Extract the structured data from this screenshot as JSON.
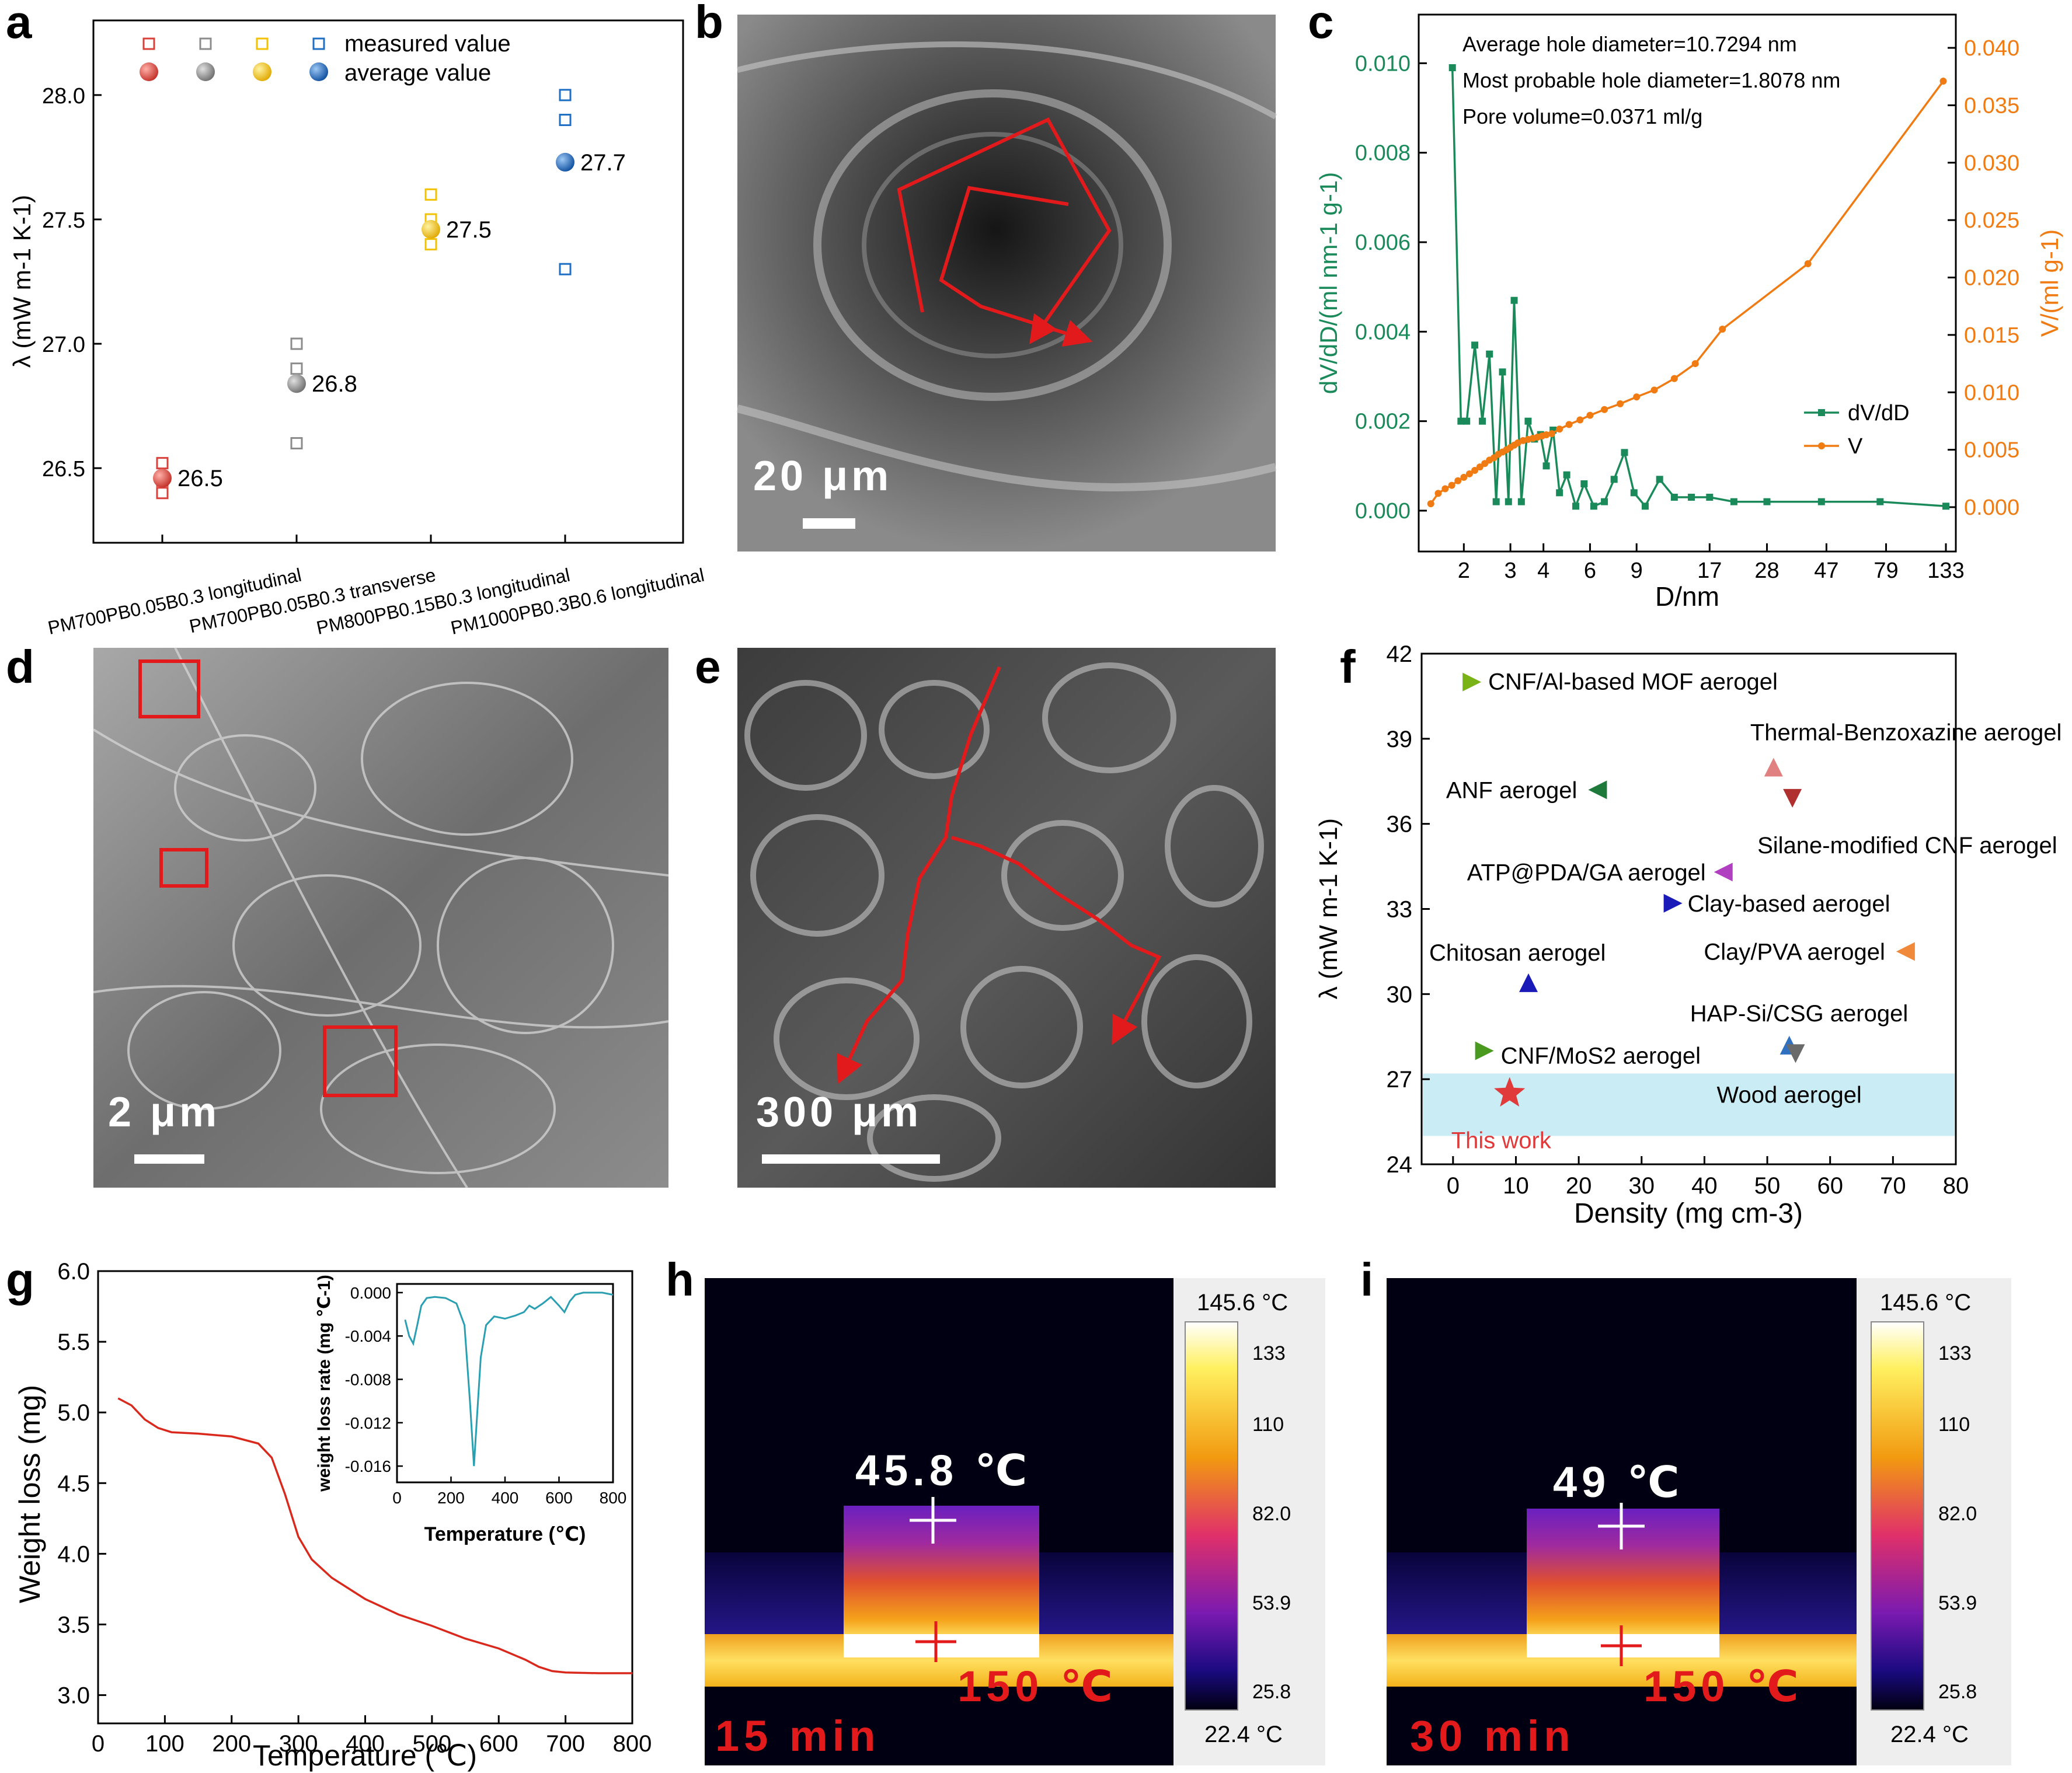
{
  "panel_letters": [
    "a",
    "b",
    "c",
    "d",
    "e",
    "f",
    "g",
    "h",
    "i"
  ],
  "colors": {
    "red": "#d9403a",
    "gray": "#8c8c8c",
    "gold": "#f2c200",
    "blue": "#1f6fc4",
    "green": "#1a8a5a",
    "orange": "#f07b12",
    "tga": "#d9281c",
    "inset": "#2a9fb2",
    "arrow": "#e31a1c",
    "band": "#c9ecf5"
  },
  "chart_data": [
    {
      "panel": "a",
      "type": "scatter",
      "legend_rows": [
        "measured value",
        "average value"
      ],
      "legend_position": "top",
      "ylabel": "λ (mW m-1 K-1)",
      "ylim": [
        26.2,
        28.3
      ],
      "yticks": [
        "26.5",
        "27.0",
        "27.5",
        "28.0"
      ],
      "groups": [
        {
          "label": "PM700PB0.05B0.3 longitudinal",
          "measured": [
            26.52,
            26.45,
            26.4
          ],
          "average": 26.46,
          "value_label": "26.5",
          "color": "#d9403a"
        },
        {
          "label": "PM700PB0.05B0.3 transverse",
          "measured": [
            27.0,
            26.9,
            26.6
          ],
          "average": 26.84,
          "value_label": "26.8",
          "color": "#8c8c8c"
        },
        {
          "label": "PM800PB0.15B0.3 longitudinal",
          "measured": [
            27.6,
            27.5,
            27.4
          ],
          "average": 27.46,
          "value_label": "27.5",
          "color": "#f2c200"
        },
        {
          "label": "PM1000PB0.3B0.6 longitudinal",
          "measured": [
            28.0,
            27.9,
            27.3
          ],
          "average": 27.73,
          "value_label": "27.7",
          "color": "#1f6fc4"
        }
      ]
    },
    {
      "panel": "c",
      "type": "line",
      "xlabel": "D/nm",
      "ylabel_left": "dV/dD/(ml nm-1 g-1)",
      "ylabel_right": "V/(ml g-1)",
      "x_scale": "log",
      "xticks": [
        "2",
        "3",
        "4",
        "6",
        "9",
        "17",
        "28",
        "47",
        "79",
        "133"
      ],
      "ylim_left": [
        0,
        0.0105
      ],
      "ylim_right": [
        0,
        0.04
      ],
      "yticks_left": [
        "0.000",
        "0.002",
        "0.004",
        "0.006",
        "0.008",
        "0.010"
      ],
      "yticks_right": [
        "0.000",
        "0.005",
        "0.010",
        "0.015",
        "0.020",
        "0.025",
        "0.030",
        "0.035",
        "0.040"
      ],
      "annotations": [
        "Average hole diameter=10.7294 nm",
        "Most probable hole diameter=1.8078 nm",
        "Pore volume=0.0371 ml/g"
      ],
      "legend_position": "right",
      "series": [
        {
          "name": "dV/dD",
          "axis": "left",
          "color": "#1a8a5a",
          "marker": "square",
          "x": [
            1.81,
            1.95,
            2.05,
            2.2,
            2.35,
            2.5,
            2.65,
            2.8,
            2.95,
            3.1,
            3.3,
            3.5,
            3.7,
            3.9,
            4.1,
            4.35,
            4.6,
            4.9,
            5.3,
            5.7,
            6.2,
            6.8,
            7.4,
            8.1,
            8.8,
            9.7,
            11,
            12.5,
            14.5,
            17,
            21,
            28,
            45,
            75,
            133
          ],
          "y": [
            0.0099,
            0.002,
            0.002,
            0.0037,
            0.002,
            0.0035,
            0.0002,
            0.0031,
            0.0002,
            0.0047,
            0.0002,
            0.002,
            0.0016,
            0.0017,
            0.001,
            0.0018,
            0.0004,
            0.0008,
            0.0001,
            0.0006,
            0.0001,
            0.0002,
            0.0007,
            0.0013,
            0.0004,
            0.0001,
            0.0007,
            0.0003,
            0.0003,
            0.0003,
            0.0002,
            0.0002,
            0.0002,
            0.0002,
            0.0001
          ]
        },
        {
          "name": "V",
          "axis": "right",
          "color": "#f07b12",
          "marker": "circle",
          "x": [
            1.5,
            1.6,
            1.7,
            1.8,
            1.9,
            2.0,
            2.1,
            2.2,
            2.3,
            2.4,
            2.5,
            2.6,
            2.7,
            2.8,
            2.9,
            3.0,
            3.1,
            3.2,
            3.35,
            3.5,
            3.65,
            3.8,
            3.95,
            4.1,
            4.3,
            4.6,
            5.0,
            5.5,
            6.0,
            6.8,
            7.8,
            9.0,
            10.5,
            12.5,
            15,
            19,
            40,
            130
          ],
          "y": [
            0.0003,
            0.0012,
            0.0016,
            0.0019,
            0.0023,
            0.0026,
            0.0029,
            0.0032,
            0.0035,
            0.0038,
            0.0041,
            0.0043,
            0.0046,
            0.0048,
            0.005,
            0.0052,
            0.0054,
            0.0056,
            0.0058,
            0.0059,
            0.006,
            0.0061,
            0.0062,
            0.0063,
            0.0064,
            0.0068,
            0.0072,
            0.0076,
            0.008,
            0.0085,
            0.009,
            0.0096,
            0.0102,
            0.0112,
            0.0125,
            0.0155,
            0.0212,
            0.0371
          ]
        }
      ]
    },
    {
      "panel": "f",
      "type": "scatter",
      "xlabel": "Density (mg cm-3)",
      "ylabel": "λ (mW m-1 K-1)",
      "xlim": [
        -5,
        80
      ],
      "ylim": [
        24,
        42
      ],
      "xticks": [
        "0",
        "10",
        "20",
        "30",
        "40",
        "50",
        "60",
        "70",
        "80"
      ],
      "yticks": [
        "24",
        "27",
        "30",
        "33",
        "36",
        "39",
        "42"
      ],
      "band": {
        "y": [
          25,
          27.2
        ]
      },
      "points": [
        {
          "label": "CNF/Al-based MOF aerogel",
          "x": 3,
          "y": 41.0,
          "color": "#7ab317",
          "marker": "tri-right"
        },
        {
          "label": "Thermal-Benzoxazine aerogel",
          "x": 51,
          "y": 38.0,
          "color": "#e08080",
          "marker": "tri-up"
        },
        {
          "label": "ANF aerogel",
          "x": 23,
          "y": 37.2,
          "color": "#1e7a3a",
          "marker": "tri-left"
        },
        {
          "label": "Silane-modified CNF aerogel",
          "x": 54,
          "y": 36.9,
          "color": "#b03030",
          "marker": "tri-down"
        },
        {
          "label": "ATP@PDA/GA aerogel",
          "x": 43,
          "y": 34.3,
          "color": "#b040c0",
          "marker": "tri-left"
        },
        {
          "label": "Clay-based aerogel",
          "x": 35,
          "y": 33.2,
          "color": "#1a1ab8",
          "marker": "tri-right"
        },
        {
          "label": "Clay/PVA aerogel",
          "x": 72,
          "y": 31.5,
          "color": "#f08a3a",
          "marker": "tri-left"
        },
        {
          "label": "Chitosan aerogel",
          "x": 12,
          "y": 30.4,
          "color": "#1a1ab8",
          "marker": "tri-up"
        },
        {
          "label": "HAP-Si/CSG aerogel",
          "x": 53.5,
          "y": 28.2,
          "color": "#3070c0",
          "marker": "tri-up"
        },
        {
          "label": "Wood aerogel",
          "x": 54.5,
          "y": 27.9,
          "color": "#6a6a6a",
          "marker": "tri-down"
        },
        {
          "label": "CNF/MoS2 aerogel",
          "x": 5,
          "y": 28.0,
          "color": "#4a9a20",
          "marker": "tri-right"
        },
        {
          "label": "This work",
          "x": 9,
          "y": 26.5,
          "color": "#e03a3a",
          "marker": "star"
        }
      ]
    },
    {
      "panel": "g",
      "type": "line",
      "xlabel": "Temperature (℃)",
      "ylabel": "Weight loss (mg)",
      "xlim": [
        0,
        800
      ],
      "ylim": [
        2.8,
        6.0
      ],
      "xticks": [
        "0",
        "100",
        "200",
        "300",
        "400",
        "500",
        "600",
        "700",
        "800"
      ],
      "yticks": [
        "3.0",
        "3.5",
        "4.0",
        "4.5",
        "5.0",
        "5.5",
        "6.0"
      ],
      "x": [
        30,
        50,
        70,
        90,
        110,
        150,
        200,
        240,
        260,
        280,
        300,
        320,
        350,
        400,
        450,
        500,
        550,
        600,
        640,
        660,
        680,
        700,
        750,
        800
      ],
      "y": [
        5.1,
        5.05,
        4.95,
        4.89,
        4.86,
        4.85,
        4.83,
        4.78,
        4.68,
        4.42,
        4.12,
        3.96,
        3.83,
        3.68,
        3.57,
        3.49,
        3.4,
        3.33,
        3.25,
        3.2,
        3.17,
        3.16,
        3.155,
        3.155
      ],
      "inset": {
        "xlabel": "Temperature (℃)",
        "ylabel": "weight loss rate (mg ℃-1)",
        "xlim": [
          0,
          800
        ],
        "ylim": [
          -0.0175,
          0.0008
        ],
        "xticks": [
          "0",
          "200",
          "400",
          "600",
          "800"
        ],
        "yticks": [
          "0.000",
          "-0.004",
          "-0.008",
          "-0.012",
          "-0.016"
        ],
        "x": [
          30,
          45,
          60,
          75,
          90,
          110,
          140,
          180,
          220,
          250,
          270,
          285,
          295,
          310,
          330,
          360,
          400,
          440,
          470,
          490,
          510,
          540,
          570,
          600,
          620,
          640,
          660,
          690,
          720,
          760,
          800
        ],
        "y": [
          -0.0025,
          -0.004,
          -0.0047,
          -0.003,
          -0.0012,
          -0.0005,
          -0.0004,
          -0.0005,
          -0.001,
          -0.003,
          -0.01,
          -0.016,
          -0.012,
          -0.006,
          -0.003,
          -0.0022,
          -0.0024,
          -0.0021,
          -0.0018,
          -0.0012,
          -0.0015,
          -0.001,
          -0.0004,
          -0.0012,
          -0.0018,
          -0.0008,
          -0.0002,
          0.0,
          0.0,
          0.0,
          -0.0002
        ]
      }
    }
  ],
  "sem_panels": {
    "b": {
      "scale_text": "20 μm"
    },
    "d": {
      "scale_text": "2 μm"
    },
    "e": {
      "scale_text": "300 μm"
    }
  },
  "thermal_panels": {
    "h": {
      "top_temp": "45.8 ℃",
      "bottom_temp": "150 ℃",
      "time": "15 min"
    },
    "i": {
      "top_temp": "49 ℃",
      "bottom_temp": "150 ℃",
      "time": "30 min"
    },
    "colorbar": {
      "max_label": "145.6 °C",
      "min_label": "22.4 °C",
      "ticks": [
        "133",
        "110",
        "82.0",
        "53.9",
        "25.8"
      ]
    }
  }
}
